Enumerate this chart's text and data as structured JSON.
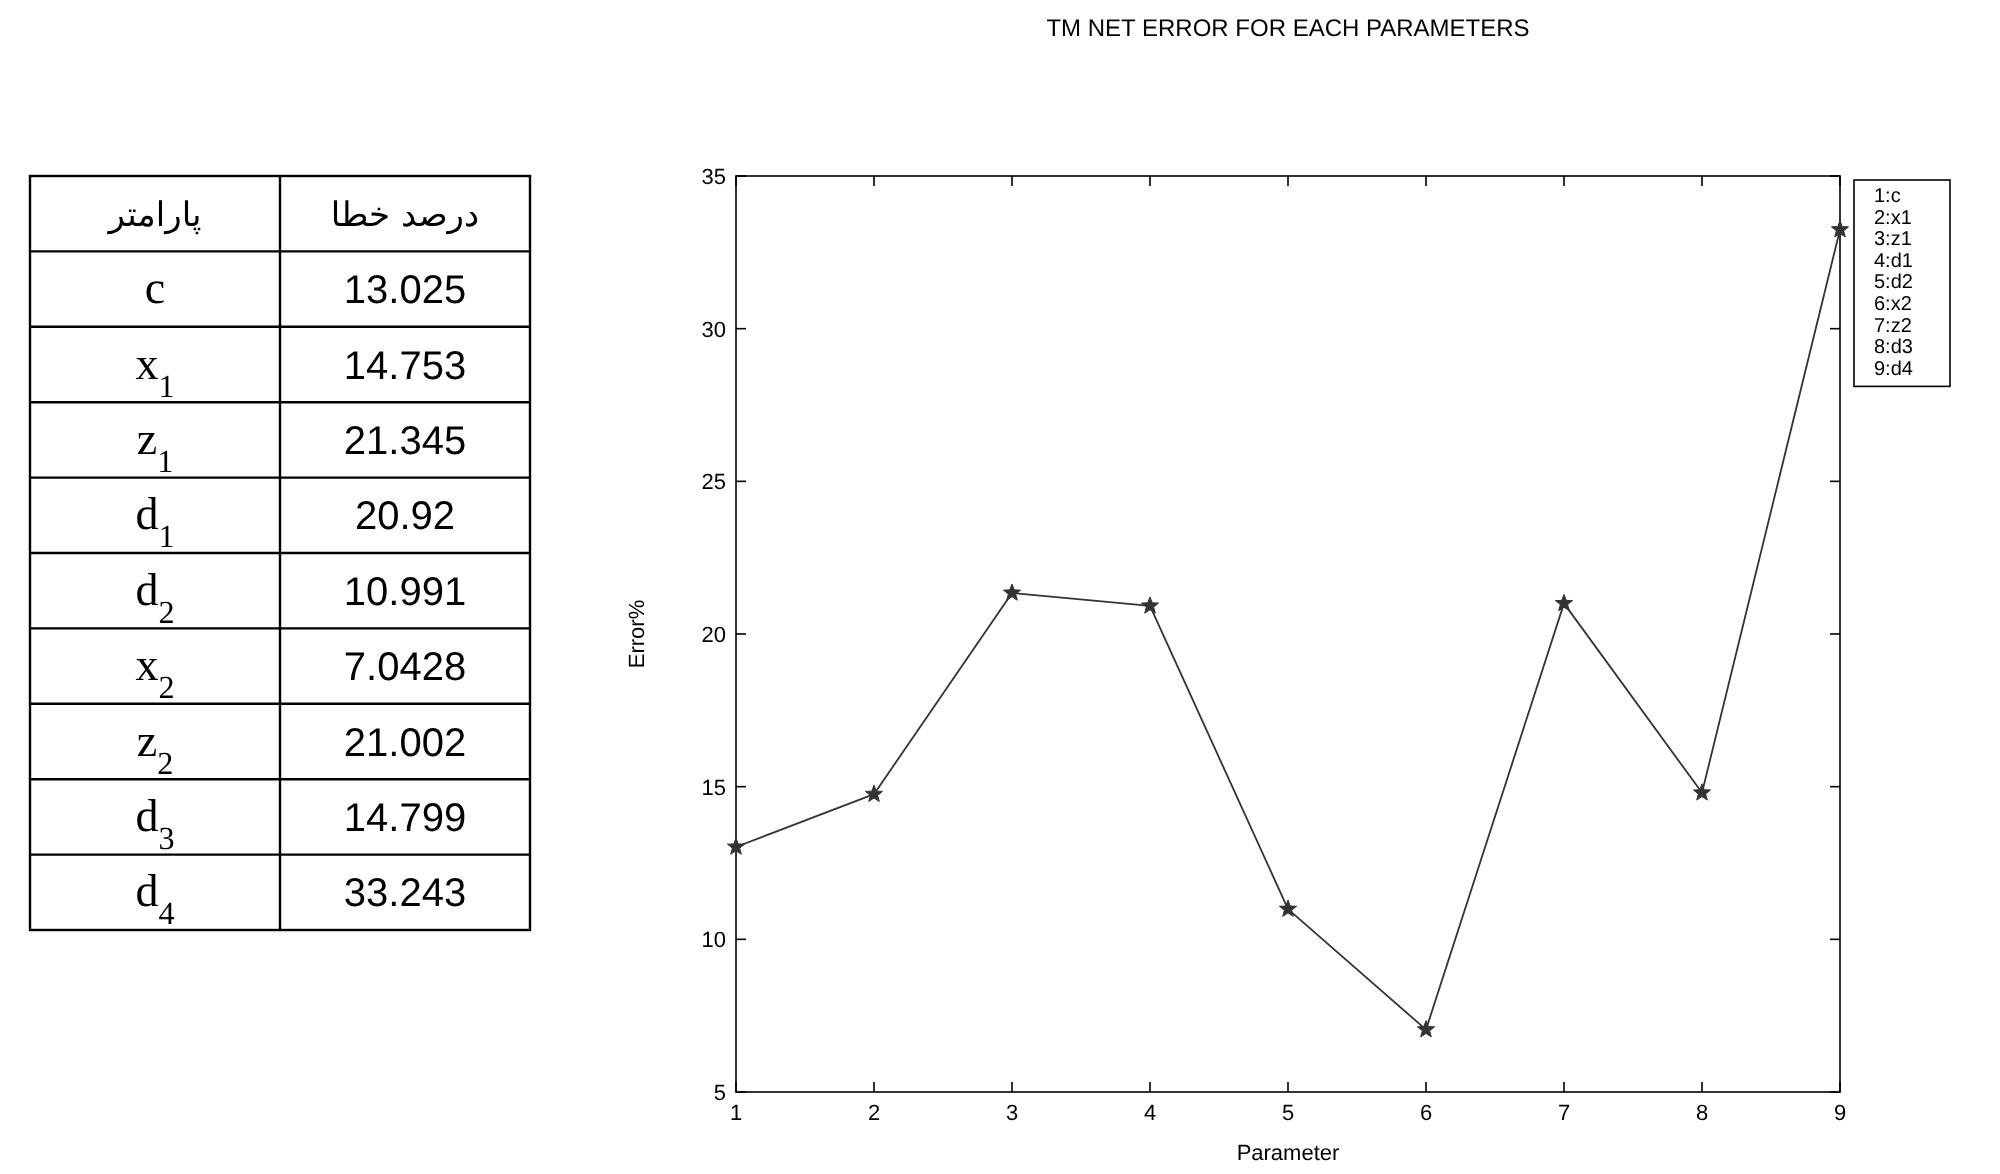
{
  "chart_data": [
    {
      "type": "other",
      "categories": [
        "c",
        "x$_{1}$",
        "z$_{1}$",
        "d$_{1}$",
        "d$_{2}$",
        "x$_{2}$",
        "z$_{2}$",
        "d$_{3}$",
        "d$_{4}$"
      ],
      "values": [
        13.025,
        14.753,
        21.345,
        20.92,
        10.991,
        7.0428,
        21.002,
        14.799,
        33.243
      ],
      "data_labels": true,
      "annotations": [
        "پارامتر",
        "درصد خطا"
      ]
    },
    {
      "type": "line",
      "title": "TM NET ERROR FOR EACH PARAMETERS",
      "xlabel": "Parameter",
      "ylabel": "Error%",
      "x": [
        1,
        2,
        3,
        4,
        5,
        6,
        7,
        8,
        9
      ],
      "values": [
        13.025,
        14.753,
        21.345,
        20.92,
        10.991,
        7.0428,
        21.002,
        14.799,
        33.243
      ],
      "color": "#333333",
      "marker": "star",
      "line_style": "solid",
      "xlim": [
        1,
        9
      ],
      "xticks": [
        1,
        2,
        3,
        4,
        5,
        6,
        7,
        8,
        9
      ],
      "ylim": [
        5,
        35
      ],
      "yticks": [
        5,
        10,
        15,
        20,
        25,
        30,
        35
      ],
      "annotations": [
        "1:c",
        "2:x1",
        "3:z1",
        "4:d1",
        "5:d2",
        "6:x2",
        "7:z2",
        "8:d3",
        "9:d4"
      ]
    }
  ]
}
